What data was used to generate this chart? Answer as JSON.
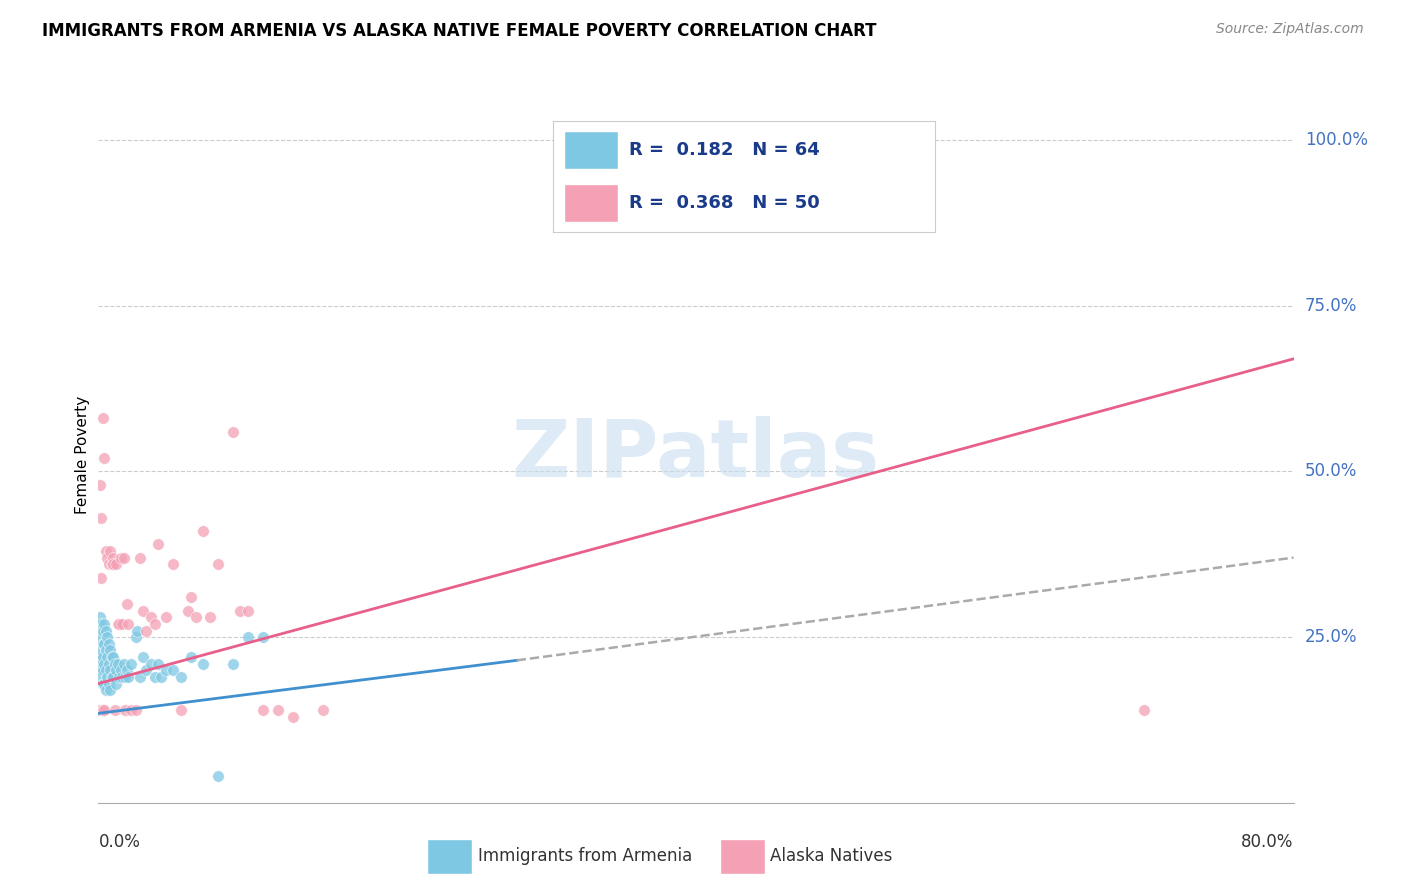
{
  "title": "IMMIGRANTS FROM ARMENIA VS ALASKA NATIVE FEMALE POVERTY CORRELATION CHART",
  "source": "Source: ZipAtlas.com",
  "ylabel": "Female Poverty",
  "legend_R_blue": "0.182",
  "legend_N_blue": "64",
  "legend_R_pink": "0.368",
  "legend_N_pink": "50",
  "blue_color": "#7ec8e3",
  "pink_color": "#f4a0b5",
  "blue_line_color": "#4090d0",
  "pink_line_color": "#e8608a",
  "dashed_line_color": "#aaaaaa",
  "watermark_color": "#c8dff0",
  "right_tick_color": "#4472C4",
  "blue_line_x0": 0.0,
  "blue_line_y0": 0.135,
  "blue_line_x1": 0.28,
  "blue_line_y1": 0.215,
  "pink_line_x0": 0.0,
  "pink_line_y0": 0.18,
  "pink_line_x1": 0.8,
  "pink_line_y1": 0.67,
  "dash_line_x0": 0.28,
  "dash_line_y0": 0.215,
  "dash_line_x1": 0.8,
  "dash_line_y1": 0.37,
  "blue_scatter_x": [
    0.001,
    0.001,
    0.001,
    0.001,
    0.002,
    0.002,
    0.002,
    0.002,
    0.003,
    0.003,
    0.003,
    0.003,
    0.003,
    0.004,
    0.004,
    0.004,
    0.004,
    0.005,
    0.005,
    0.005,
    0.005,
    0.006,
    0.006,
    0.006,
    0.007,
    0.007,
    0.007,
    0.008,
    0.008,
    0.008,
    0.009,
    0.009,
    0.01,
    0.01,
    0.011,
    0.012,
    0.012,
    0.013,
    0.014,
    0.015,
    0.016,
    0.017,
    0.018,
    0.019,
    0.02,
    0.022,
    0.025,
    0.026,
    0.028,
    0.03,
    0.032,
    0.035,
    0.038,
    0.04,
    0.042,
    0.045,
    0.05,
    0.055,
    0.062,
    0.07,
    0.08,
    0.09,
    0.1,
    0.11
  ],
  "blue_scatter_y": [
    0.28,
    0.25,
    0.22,
    0.2,
    0.27,
    0.23,
    0.21,
    0.19,
    0.26,
    0.24,
    0.22,
    0.2,
    0.18,
    0.27,
    0.24,
    0.21,
    0.18,
    0.26,
    0.23,
    0.2,
    0.17,
    0.25,
    0.22,
    0.19,
    0.24,
    0.21,
    0.18,
    0.23,
    0.2,
    0.17,
    0.22,
    0.19,
    0.22,
    0.19,
    0.21,
    0.2,
    0.18,
    0.21,
    0.19,
    0.2,
    0.19,
    0.21,
    0.19,
    0.2,
    0.19,
    0.21,
    0.25,
    0.26,
    0.19,
    0.22,
    0.2,
    0.21,
    0.19,
    0.21,
    0.19,
    0.2,
    0.2,
    0.19,
    0.22,
    0.21,
    0.04,
    0.21,
    0.25,
    0.25
  ],
  "pink_scatter_x": [
    0.001,
    0.001,
    0.002,
    0.002,
    0.003,
    0.003,
    0.004,
    0.004,
    0.005,
    0.006,
    0.007,
    0.008,
    0.009,
    0.01,
    0.01,
    0.011,
    0.012,
    0.013,
    0.014,
    0.015,
    0.016,
    0.017,
    0.018,
    0.019,
    0.02,
    0.022,
    0.025,
    0.028,
    0.03,
    0.032,
    0.035,
    0.038,
    0.04,
    0.045,
    0.05,
    0.055,
    0.06,
    0.062,
    0.065,
    0.07,
    0.075,
    0.08,
    0.09,
    0.095,
    0.1,
    0.11,
    0.12,
    0.13,
    0.15,
    0.7
  ],
  "pink_scatter_y": [
    0.48,
    0.14,
    0.34,
    0.43,
    0.58,
    0.14,
    0.52,
    0.14,
    0.38,
    0.37,
    0.36,
    0.38,
    0.36,
    0.37,
    0.36,
    0.14,
    0.36,
    0.27,
    0.27,
    0.37,
    0.27,
    0.37,
    0.14,
    0.3,
    0.27,
    0.14,
    0.14,
    0.37,
    0.29,
    0.26,
    0.28,
    0.27,
    0.39,
    0.28,
    0.36,
    0.14,
    0.29,
    0.31,
    0.28,
    0.41,
    0.28,
    0.36,
    0.56,
    0.29,
    0.29,
    0.14,
    0.14,
    0.13,
    0.14,
    0.14
  ],
  "xmin": 0.0,
  "xmax": 0.8,
  "ymin": 0.0,
  "ymax": 1.05,
  "yticks": [
    0.25,
    0.5,
    0.75,
    1.0
  ],
  "ytick_labels": [
    "25.0%",
    "50.0%",
    "75.0%",
    "100.0%"
  ]
}
